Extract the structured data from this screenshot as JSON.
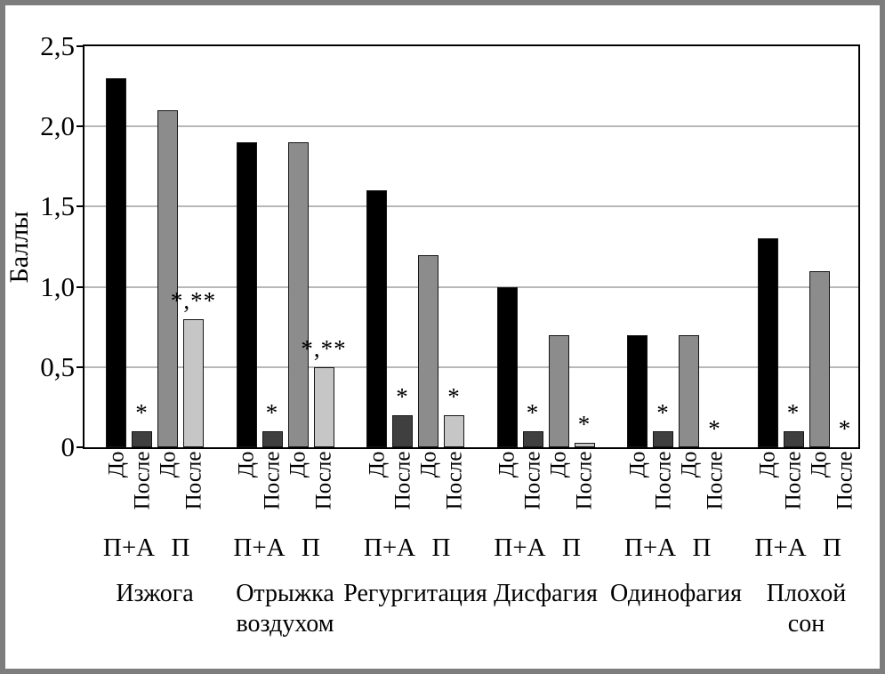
{
  "chart_data": {
    "type": "bar",
    "title": "",
    "ylabel": "Баллы",
    "xlabel": "",
    "ylim": [
      0,
      2.5
    ],
    "grid": true,
    "legend_position": "none",
    "ytick_values": [
      0,
      0.5,
      1.0,
      1.5,
      2.0,
      2.5
    ],
    "ytick_labels": [
      "0",
      "0,5",
      "1,0",
      "1,5",
      "2,0",
      "2,5"
    ],
    "grid_values": [
      0.5,
      1.0,
      1.5,
      2.0
    ],
    "bar_tick_labels": [
      "До",
      "После",
      "До",
      "После"
    ],
    "pair_labels": [
      "П+А",
      "П"
    ],
    "colors": {
      "before_pa": "#000000",
      "after_pa": "#3f3f3f",
      "before_p": "#8c8c8c",
      "after_p": "#c6c6c6",
      "grid": "#b8b8b8",
      "frame": "#000000",
      "outer_border": "#7d7d7d",
      "background": "#ffffff"
    },
    "groups": [
      {
        "category": "Изжога",
        "category_lines": [
          "Изжога"
        ],
        "bars": [
          {
            "label": "До",
            "series": "П+А",
            "value": 2.3,
            "color_key": "before_pa",
            "annotation": ""
          },
          {
            "label": "После",
            "series": "П+А",
            "value": 0.1,
            "color_key": "after_pa",
            "annotation": "*"
          },
          {
            "label": "До",
            "series": "П",
            "value": 2.1,
            "color_key": "before_p",
            "annotation": ""
          },
          {
            "label": "После",
            "series": "П",
            "value": 0.8,
            "color_key": "after_p",
            "annotation": "*,**"
          }
        ]
      },
      {
        "category": "Отрыжка воздухом",
        "category_lines": [
          "Отрыжка",
          "воздухом"
        ],
        "bars": [
          {
            "label": "До",
            "series": "П+А",
            "value": 1.9,
            "color_key": "before_pa",
            "annotation": ""
          },
          {
            "label": "После",
            "series": "П+А",
            "value": 0.1,
            "color_key": "after_pa",
            "annotation": "*"
          },
          {
            "label": "До",
            "series": "П",
            "value": 1.9,
            "color_key": "before_p",
            "annotation": ""
          },
          {
            "label": "После",
            "series": "П",
            "value": 0.5,
            "color_key": "after_p",
            "annotation": "*,**"
          }
        ]
      },
      {
        "category": "Регургитация",
        "category_lines": [
          "Регургитация"
        ],
        "bars": [
          {
            "label": "До",
            "series": "П+А",
            "value": 1.6,
            "color_key": "before_pa",
            "annotation": ""
          },
          {
            "label": "После",
            "series": "П+А",
            "value": 0.2,
            "color_key": "after_pa",
            "annotation": "*"
          },
          {
            "label": "До",
            "series": "П",
            "value": 1.2,
            "color_key": "before_p",
            "annotation": ""
          },
          {
            "label": "После",
            "series": "П",
            "value": 0.2,
            "color_key": "after_p",
            "annotation": "*"
          }
        ]
      },
      {
        "category": "Дисфагия",
        "category_lines": [
          "Дисфагия"
        ],
        "bars": [
          {
            "label": "До",
            "series": "П+А",
            "value": 1.0,
            "color_key": "before_pa",
            "annotation": ""
          },
          {
            "label": "После",
            "series": "П+А",
            "value": 0.1,
            "color_key": "after_pa",
            "annotation": "*"
          },
          {
            "label": "До",
            "series": "П",
            "value": 0.7,
            "color_key": "before_p",
            "annotation": ""
          },
          {
            "label": "После",
            "series": "П",
            "value": 0.03,
            "color_key": "after_p",
            "annotation": "*"
          }
        ]
      },
      {
        "category": "Одинофагия",
        "category_lines": [
          "Одинофагия"
        ],
        "bars": [
          {
            "label": "До",
            "series": "П+А",
            "value": 0.7,
            "color_key": "before_pa",
            "annotation": ""
          },
          {
            "label": "После",
            "series": "П+А",
            "value": 0.1,
            "color_key": "after_pa",
            "annotation": "*"
          },
          {
            "label": "До",
            "series": "П",
            "value": 0.7,
            "color_key": "before_p",
            "annotation": ""
          },
          {
            "label": "После",
            "series": "П",
            "value": 0,
            "color_key": "after_p",
            "annotation": "*"
          }
        ]
      },
      {
        "category": "Плохой сон",
        "category_lines": [
          "Плохой",
          "сон"
        ],
        "bars": [
          {
            "label": "До",
            "series": "П+А",
            "value": 1.3,
            "color_key": "before_pa",
            "annotation": ""
          },
          {
            "label": "После",
            "series": "П+А",
            "value": 0.1,
            "color_key": "after_pa",
            "annotation": "*"
          },
          {
            "label": "До",
            "series": "П",
            "value": 1.1,
            "color_key": "before_p",
            "annotation": ""
          },
          {
            "label": "После",
            "series": "П",
            "value": 0,
            "color_key": "after_p",
            "annotation": "*"
          }
        ]
      }
    ]
  }
}
